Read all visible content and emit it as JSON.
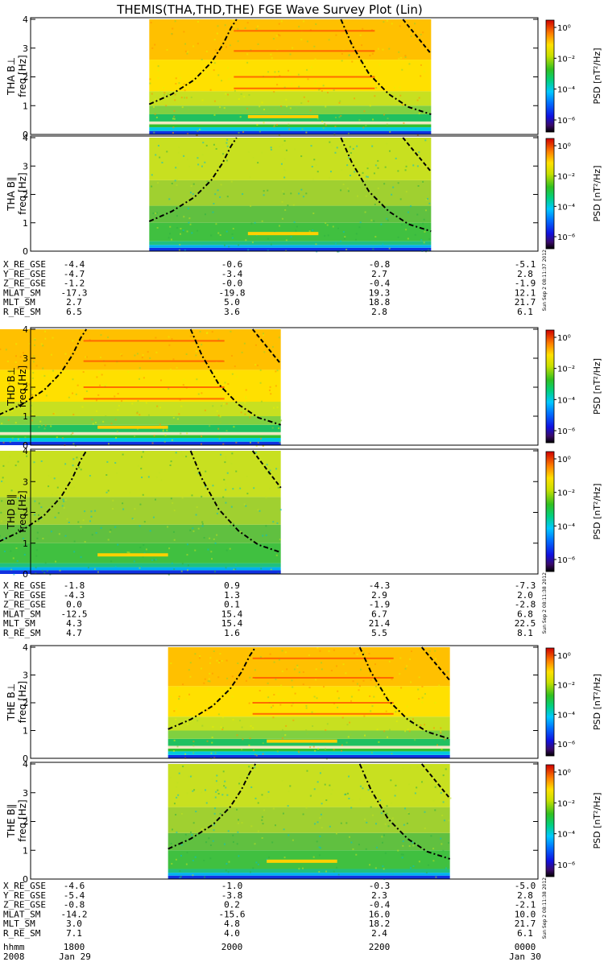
{
  "title": "THEMIS(THA,THD,THE) FGE Wave Survey Plot (Lin)",
  "colorbar": {
    "label": "PSD [nT²/Hz]",
    "ticks": [
      "10⁰",
      "10⁻²",
      "10⁻⁴",
      "10⁻⁶"
    ]
  },
  "timestamps": {
    "a": "Sun Sep  2 08:11:37 2012",
    "d": "Sun Sep  2 08:11:38 2012",
    "e": "Sun Sep  2 08:11:38 2012"
  },
  "chart_data": [
    {
      "type": "heatmap",
      "probe": "THA",
      "panel": "B⊥",
      "ylabel": "THA B⊥",
      "yunit": "freq [Hz]",
      "ylim": [
        0,
        4
      ],
      "yticks": [
        "0",
        "1",
        "2",
        "3",
        "4"
      ],
      "data_start_hhmm": "1900",
      "data_end_hhmm": "2245",
      "zlim": [
        "10⁻⁷",
        "10¹"
      ],
      "zscale": "log"
    },
    {
      "type": "heatmap",
      "probe": "THA",
      "panel": "B∥",
      "ylabel": "THA B∥",
      "yunit": "freq [Hz]",
      "ylim": [
        0,
        4
      ],
      "yticks": [
        "0",
        "1",
        "2",
        "3",
        "4"
      ],
      "data_start_hhmm": "1900",
      "data_end_hhmm": "2245",
      "zlim": [
        "10⁻⁷",
        "10¹"
      ],
      "zscale": "log"
    },
    {
      "type": "heatmap",
      "probe": "THD",
      "panel": "B⊥",
      "ylabel": "THD B⊥",
      "yunit": "freq [Hz]",
      "ylim": [
        0,
        4
      ],
      "yticks": [
        "0",
        "1",
        "2",
        "3",
        "4"
      ],
      "data_start_hhmm": "1700",
      "data_end_hhmm": "2045",
      "zlim": [
        "10⁻⁷",
        "10¹"
      ],
      "zscale": "log"
    },
    {
      "type": "heatmap",
      "probe": "THD",
      "panel": "B∥",
      "ylabel": "THD B∥",
      "yunit": "freq [Hz]",
      "ylim": [
        0,
        4
      ],
      "yticks": [
        "0",
        "1",
        "2",
        "3",
        "4"
      ],
      "data_start_hhmm": "1700",
      "data_end_hhmm": "2045",
      "zlim": [
        "10⁻⁷",
        "10¹"
      ],
      "zscale": "log"
    },
    {
      "type": "heatmap",
      "probe": "THE",
      "panel": "B⊥",
      "ylabel": "THE B⊥",
      "yunit": "freq [Hz]",
      "ylim": [
        0,
        4
      ],
      "yticks": [
        "0",
        "1",
        "2",
        "3",
        "4"
      ],
      "data_start_hhmm": "1915",
      "data_end_hhmm": "2300",
      "zlim": [
        "10⁻⁷",
        "10¹"
      ],
      "zscale": "log"
    },
    {
      "type": "heatmap",
      "probe": "THE",
      "panel": "B∥",
      "ylabel": "THE B∥",
      "yunit": "freq [Hz]",
      "ylim": [
        0,
        4
      ],
      "yticks": [
        "0",
        "1",
        "2",
        "3",
        "4"
      ],
      "data_start_hhmm": "1915",
      "data_end_hhmm": "2300",
      "zlim": [
        "10⁻⁷",
        "10¹"
      ],
      "zscale": "log"
    }
  ],
  "ephemeris": [
    {
      "probe": "THA",
      "rows": [
        {
          "label": "X_RE_GSE",
          "values": [
            "-4.4",
            "-0.6",
            "-0.8",
            "-5.1"
          ]
        },
        {
          "label": "Y_RE_GSE",
          "values": [
            "-4.7",
            "-3.4",
            "2.7",
            "2.8"
          ]
        },
        {
          "label": "Z_RE_GSE",
          "values": [
            "-1.2",
            "-0.0",
            "-0.4",
            "-1.9"
          ]
        },
        {
          "label": "MLAT_SM",
          "values": [
            "-17.3",
            "-19.8",
            "19.3",
            "12.1"
          ]
        },
        {
          "label": "MLT_SM",
          "values": [
            "2.7",
            "5.0",
            "18.8",
            "21.7"
          ]
        },
        {
          "label": "R_RE_SM",
          "values": [
            "6.5",
            "3.6",
            "2.8",
            "6.1"
          ]
        }
      ]
    },
    {
      "probe": "THD",
      "rows": [
        {
          "label": "X_RE_GSE",
          "values": [
            "-1.8",
            "0.9",
            "-4.3",
            "-7.3"
          ]
        },
        {
          "label": "Y_RE_GSE",
          "values": [
            "-4.3",
            "1.3",
            "2.9",
            "2.0"
          ]
        },
        {
          "label": "Z_RE_GSE",
          "values": [
            "0.0",
            "0.1",
            "-1.9",
            "-2.8"
          ]
        },
        {
          "label": "MLAT_SM",
          "values": [
            "-12.5",
            "15.4",
            "6.7",
            "6.8"
          ]
        },
        {
          "label": "MLT_SM",
          "values": [
            "4.3",
            "15.4",
            "21.4",
            "22.5"
          ]
        },
        {
          "label": "R_RE_SM",
          "values": [
            "4.7",
            "1.6",
            "5.5",
            "8.1"
          ]
        }
      ]
    },
    {
      "probe": "THE",
      "rows": [
        {
          "label": "X_RE_GSE",
          "values": [
            "-4.6",
            "-1.0",
            "-0.3",
            "-5.0"
          ]
        },
        {
          "label": "Y_RE_GSE",
          "values": [
            "-5.4",
            "-3.8",
            "2.3",
            "2.8"
          ]
        },
        {
          "label": "Z_RE_GSE",
          "values": [
            "-0.8",
            "0.2",
            "-0.4",
            "-2.1"
          ]
        },
        {
          "label": "MLAT_SM",
          "values": [
            "-14.2",
            "-15.6",
            "16.0",
            "10.0"
          ]
        },
        {
          "label": "MLT_SM",
          "values": [
            "3.0",
            "4.8",
            "18.2",
            "21.7"
          ]
        },
        {
          "label": "R_RE_SM",
          "values": [
            "7.1",
            "4.0",
            "2.4",
            "6.1"
          ]
        }
      ]
    }
  ],
  "time_axis": {
    "hhmm_label": "hhmm",
    "ticks": [
      "1800",
      "2000",
      "2200",
      "0000"
    ],
    "year": "2008",
    "date_start": "Jan 29",
    "date_end": "Jan 30"
  }
}
